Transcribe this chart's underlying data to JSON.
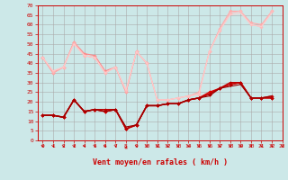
{
  "bg_color": "#cce8e8",
  "grid_color": "#aaaaaa",
  "xlabel": "Vent moyen/en rafales ( km/h )",
  "xlabel_color": "#cc0000",
  "xlabel_fontsize": 6,
  "tick_color": "#cc0000",
  "ylim": [
    0,
    70
  ],
  "xlim": [
    -0.5,
    23
  ],
  "yticks": [
    0,
    5,
    10,
    15,
    20,
    25,
    30,
    35,
    40,
    45,
    50,
    55,
    60,
    65,
    70
  ],
  "xticks": [
    0,
    1,
    2,
    3,
    4,
    5,
    6,
    7,
    8,
    9,
    10,
    11,
    12,
    13,
    14,
    15,
    16,
    17,
    18,
    19,
    20,
    21,
    22,
    23
  ],
  "series": [
    {
      "color": "#ff8888",
      "lw": 0.8,
      "marker": "D",
      "ms": 1.8,
      "y": [
        43,
        35,
        38,
        51,
        45,
        44,
        36,
        38,
        25,
        46,
        40,
        null,
        null,
        null,
        null,
        null,
        null,
        null,
        null,
        null,
        null,
        null,
        null,
        null
      ]
    },
    {
      "color": "#ffaaaa",
      "lw": 0.8,
      "marker": "D",
      "ms": 1.8,
      "y": [
        43,
        35,
        38,
        51,
        44,
        43,
        35,
        38,
        25,
        46,
        40,
        21,
        21,
        22,
        23,
        25,
        46,
        58,
        67,
        67,
        61,
        60,
        67,
        null
      ]
    },
    {
      "color": "#ffbbbb",
      "lw": 0.8,
      "marker": "D",
      "ms": 1.8,
      "y": [
        43,
        36,
        38,
        50,
        44,
        43,
        35,
        38,
        26,
        46,
        40,
        21,
        21,
        22,
        23,
        24,
        46,
        57,
        66,
        67,
        60,
        59,
        67,
        null
      ]
    },
    {
      "color": "#ffcccc",
      "lw": 0.7,
      "marker": null,
      "ms": 0,
      "y": [
        43,
        36,
        38,
        50,
        44,
        43,
        35,
        38,
        26,
        46,
        40,
        21,
        21,
        22,
        23,
        24,
        46,
        57,
        65,
        66,
        60,
        59,
        66,
        null
      ]
    },
    {
      "color": "#dd0000",
      "lw": 1.0,
      "marker": "D",
      "ms": 1.8,
      "y": [
        13,
        13,
        12,
        21,
        15,
        16,
        15,
        16,
        6,
        8,
        18,
        18,
        19,
        19,
        21,
        22,
        25,
        27,
        29,
        30,
        22,
        22,
        22,
        null
      ]
    },
    {
      "color": "#cc0000",
      "lw": 1.0,
      "marker": "D",
      "ms": 1.8,
      "y": [
        13,
        13,
        12,
        21,
        15,
        16,
        15,
        16,
        6,
        8,
        18,
        18,
        19,
        19,
        21,
        22,
        24,
        27,
        29,
        30,
        22,
        22,
        23,
        null
      ]
    },
    {
      "color": "#bb0000",
      "lw": 1.0,
      "marker": "D",
      "ms": 1.8,
      "y": [
        13,
        13,
        12,
        21,
        15,
        16,
        16,
        16,
        6,
        8,
        18,
        18,
        19,
        19,
        21,
        22,
        24,
        27,
        30,
        30,
        22,
        22,
        22,
        null
      ]
    },
    {
      "color": "#990000",
      "lw": 0.8,
      "marker": null,
      "ms": 0,
      "y": [
        13,
        13,
        12,
        21,
        15,
        16,
        15,
        16,
        7,
        8,
        18,
        18,
        19,
        19,
        21,
        22,
        23,
        27,
        28,
        29,
        22,
        22,
        23,
        null
      ]
    }
  ],
  "arrow_color": "#cc0000",
  "arrow_directions": [
    1,
    1,
    1,
    1,
    1,
    1,
    1,
    1,
    -1,
    1,
    1,
    1,
    1,
    1,
    1,
    1,
    1,
    1,
    1,
    1,
    1,
    1,
    1,
    1
  ]
}
